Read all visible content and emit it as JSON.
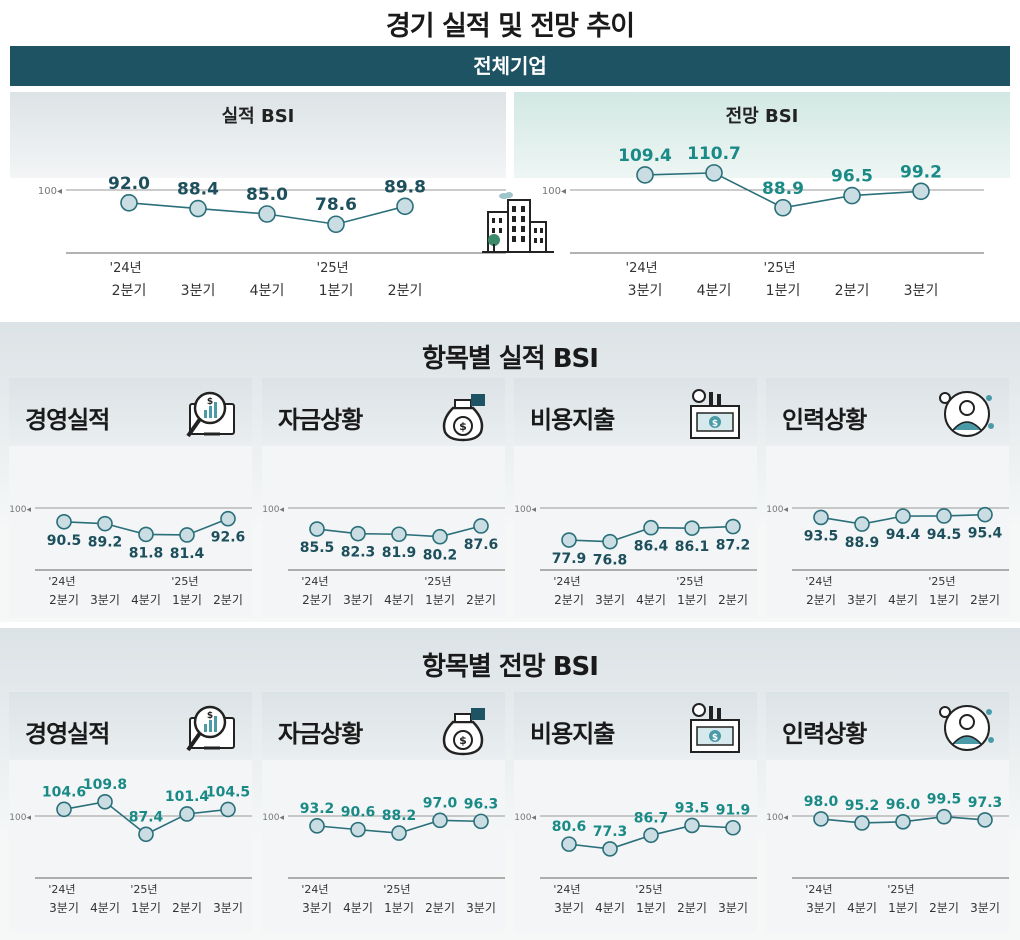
{
  "title": "경기 실적 및 전망 추이",
  "banner": "전체기업",
  "panels": {
    "performance": {
      "title": "실적 BSI",
      "chart_data": {
        "type": "line",
        "title": "실적 BSI",
        "reference": 100,
        "reference_label": "100",
        "categories": [
          {
            "year": "'24년",
            "quarter": "2분기"
          },
          {
            "year": "",
            "quarter": "3분기"
          },
          {
            "year": "",
            "quarter": "4분기"
          },
          {
            "year": "'25년",
            "quarter": "1분기"
          },
          {
            "year": "",
            "quarter": "2분기"
          }
        ],
        "values": [
          92.0,
          88.4,
          85.0,
          78.6,
          89.8
        ],
        "labels": [
          "92.0",
          "88.4",
          "85.0",
          "78.6",
          "89.8"
        ]
      }
    },
    "outlook": {
      "title": "전망 BSI",
      "chart_data": {
        "type": "line",
        "title": "전망 BSI",
        "reference": 100,
        "reference_label": "100",
        "categories": [
          {
            "year": "'24년",
            "quarter": "3분기"
          },
          {
            "year": "",
            "quarter": "4분기"
          },
          {
            "year": "'25년",
            "quarter": "1분기"
          },
          {
            "year": "",
            "quarter": "2분기"
          },
          {
            "year": "",
            "quarter": "3분기"
          }
        ],
        "values": [
          109.4,
          110.7,
          88.9,
          96.5,
          99.2
        ],
        "labels": [
          "109.4",
          "110.7",
          "88.9",
          "96.5",
          "99.2"
        ]
      }
    }
  },
  "sections": {
    "performance_items": {
      "title": "항목별 실적 BSI",
      "quarters": [
        {
          "year": "'24년",
          "quarter": "2분기"
        },
        {
          "year": "",
          "quarter": "3분기"
        },
        {
          "year": "",
          "quarter": "4분기"
        },
        {
          "year": "'25년",
          "quarter": "1분기"
        },
        {
          "year": "",
          "quarter": "2분기"
        }
      ],
      "cards": [
        {
          "title": "경영실적",
          "icon": "magnifier-chart-icon",
          "values": [
            90.5,
            89.2,
            81.8,
            81.4,
            92.6
          ],
          "labels": [
            "90.5",
            "89.2",
            "81.8",
            "81.4",
            "92.6"
          ]
        },
        {
          "title": "자금상황",
          "icon": "money-bag-icon",
          "values": [
            85.5,
            82.3,
            81.9,
            80.2,
            87.6
          ],
          "labels": [
            "85.5",
            "82.3",
            "81.9",
            "80.2",
            "87.6"
          ]
        },
        {
          "title": "비용지출",
          "icon": "factory-money-icon",
          "values": [
            77.9,
            76.8,
            86.4,
            86.1,
            87.2
          ],
          "labels": [
            "77.9",
            "76.8",
            "86.4",
            "86.1",
            "87.2"
          ]
        },
        {
          "title": "인력상황",
          "icon": "worker-network-icon",
          "values": [
            93.5,
            88.9,
            94.4,
            94.5,
            95.4
          ],
          "labels": [
            "93.5",
            "88.9",
            "94.4",
            "94.5",
            "95.4"
          ]
        }
      ]
    },
    "outlook_items": {
      "title": "항목별 전망 BSI",
      "quarters": [
        {
          "year": "'24년",
          "quarter": "3분기"
        },
        {
          "year": "",
          "quarter": "4분기"
        },
        {
          "year": "'25년",
          "quarter": "1분기"
        },
        {
          "year": "",
          "quarter": "2분기"
        },
        {
          "year": "",
          "quarter": "3분기"
        }
      ],
      "cards": [
        {
          "title": "경영실적",
          "icon": "magnifier-chart-icon",
          "values": [
            104.6,
            109.8,
            87.4,
            101.4,
            104.5
          ],
          "labels": [
            "104.6",
            "109.8",
            "87.4",
            "101.4",
            "104.5"
          ]
        },
        {
          "title": "자금상황",
          "icon": "money-bag-icon",
          "values": [
            93.2,
            90.6,
            88.2,
            97.0,
            96.3
          ],
          "labels": [
            "93.2",
            "90.6",
            "88.2",
            "97.0",
            "96.3"
          ]
        },
        {
          "title": "비용지출",
          "icon": "factory-money-icon",
          "values": [
            80.6,
            77.3,
            86.7,
            93.5,
            91.9
          ],
          "labels": [
            "80.6",
            "77.3",
            "86.7",
            "93.5",
            "91.9"
          ]
        },
        {
          "title": "인력상황",
          "icon": "worker-network-icon",
          "values": [
            98.0,
            95.2,
            96.0,
            99.5,
            97.3
          ],
          "labels": [
            "98.0",
            "95.2",
            "96.0",
            "99.5",
            "97.3"
          ]
        }
      ]
    }
  },
  "colors": {
    "banner": "#1d5363",
    "line": "#2a6f7a",
    "marker_fill": "#c9dde2",
    "performance_label": "#1d4f5c",
    "outlook_label": "#1a8a87",
    "axis": "#888888"
  }
}
